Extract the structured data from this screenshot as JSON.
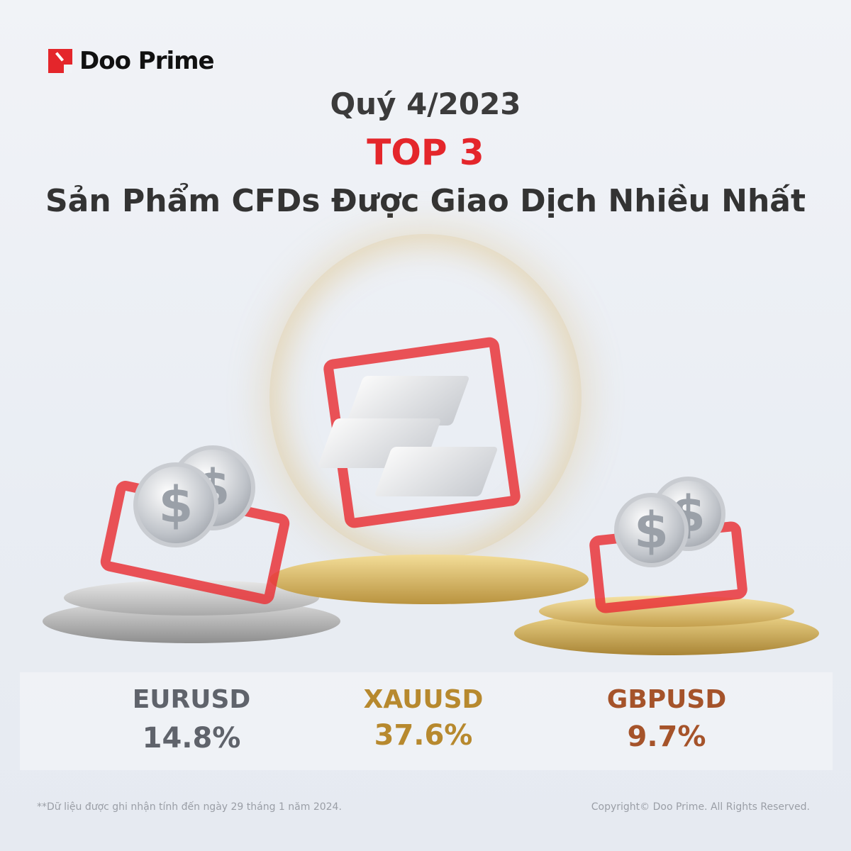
{
  "brand": {
    "name": "Doo Prime",
    "accent": "#e4262b"
  },
  "header": {
    "period": "Quý 4/2023",
    "top": "TOP 3",
    "subtitle": "Sản Phẩm CFDs Được Giao Dịch Nhiều Nhất"
  },
  "products": [
    {
      "name": "EURUSD",
      "share": "14.8%",
      "color": "#5f636b"
    },
    {
      "name": "XAUUSD",
      "share": "37.6%",
      "color": "#b7892e"
    },
    {
      "name": "GBPUSD",
      "share": "9.7%",
      "color": "#a5532a"
    }
  ],
  "footer": {
    "note": "**Dữ liệu được ghi nhận tính đến ngày 29 tháng 1 năm 2024.",
    "copyright": "Copyright© Doo Prime. All Rights Reserved."
  }
}
